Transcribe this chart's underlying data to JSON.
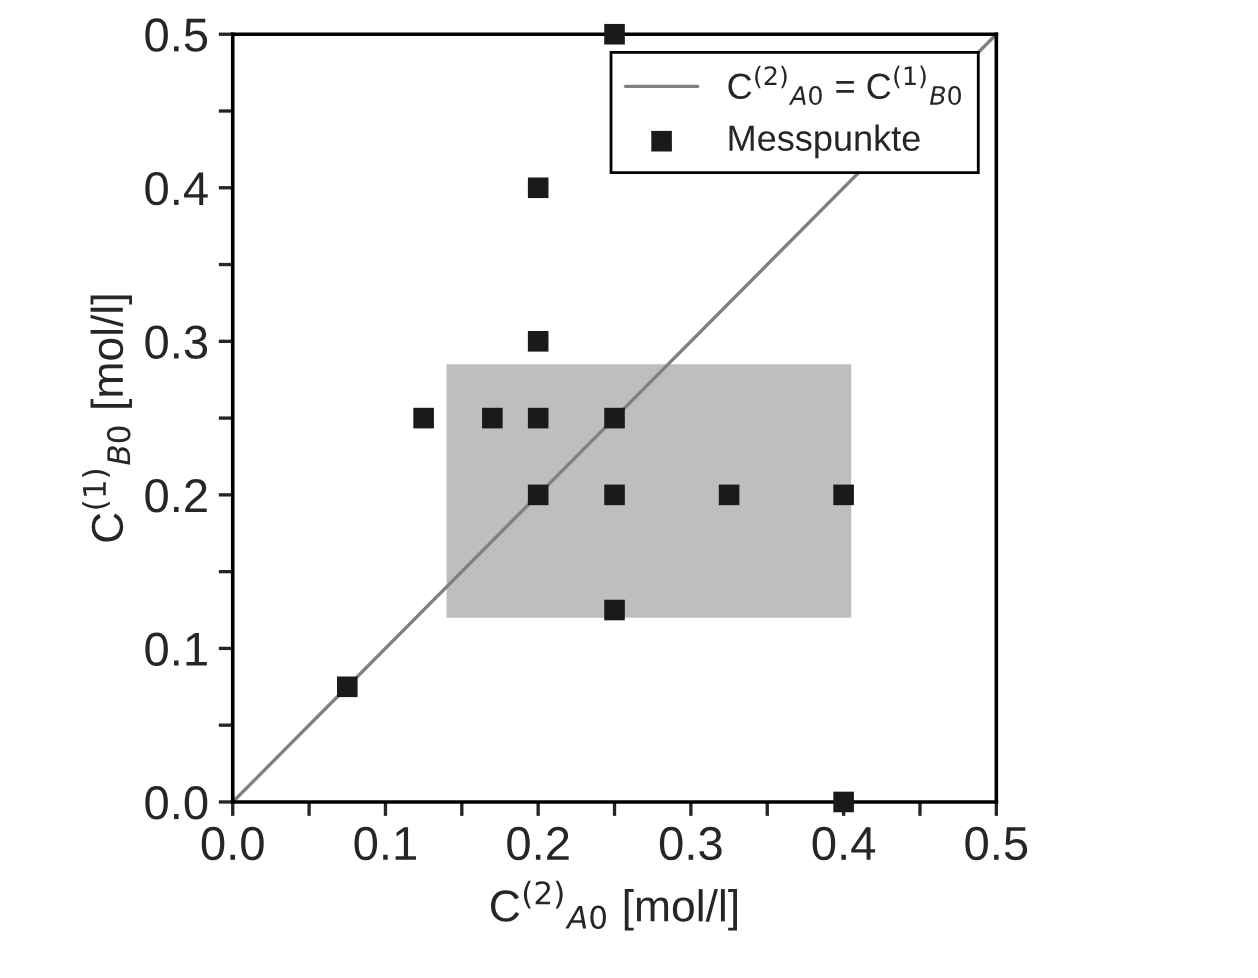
{
  "chart_data": {
    "type": "scatter",
    "xlabel": "C$^{(2)}$$_{A0}$ [mol/l]",
    "ylabel": "C$^{(1)}$$_{B0}$ [mol/l]",
    "xlim": [
      0,
      0.5
    ],
    "ylim": [
      0,
      0.5
    ],
    "xticks": [
      {
        "value": 0,
        "label": "0.0"
      },
      {
        "value": 0.05,
        "label": null
      },
      0.1,
      {
        "value": 0.15,
        "label": null
      },
      0.2,
      {
        "value": 0.25,
        "label": null
      },
      0.3,
      {
        "value": 0.35,
        "label": null
      },
      0.4,
      {
        "value": 0.45,
        "label": null
      },
      0.5
    ],
    "yticks": [
      {
        "value": 0,
        "label": "0.0"
      },
      {
        "value": 0.05,
        "label": null
      },
      0.1,
      {
        "value": 0.15,
        "label": null
      },
      0.2,
      {
        "value": 0.25,
        "label": null
      },
      0.3,
      {
        "value": 0.35,
        "label": null
      },
      0.4,
      {
        "value": 0.45,
        "label": null
      },
      0.5
    ],
    "grid": false,
    "legend": "top right",
    "series": [
      {
        "type": "area",
        "color": "#bdbec0",
        "x": [
          0.14,
          0.405
        ],
        "values": [
          null,
          null
        ],
        "lower": [
          0.12,
          0.12
        ],
        "upper": [
          0.285,
          0.285
        ]
      },
      {
        "type": "line",
        "name": "C$^{(2)}$$_{A0}$ = C$^{(1)}$$_{B0}$",
        "color": "#808080",
        "marker": "none",
        "line_style": "solid",
        "x": [
          0,
          0.5
        ],
        "values": [
          0,
          0.5
        ]
      },
      {
        "name": "Messpunkte",
        "color": "#1a1a1a",
        "marker": "square",
        "x": [
          0.075,
          0.125,
          0.17,
          0.2,
          0.2,
          0.2,
          0.2,
          0.25,
          0.25,
          0.25,
          0.25,
          0.325,
          0.4,
          0.4
        ],
        "values": [
          0.075,
          0.25,
          0.25,
          0.25,
          0.2,
          0.3,
          0.4,
          0.5,
          0.25,
          0.2,
          0.125,
          0.2,
          0.2,
          0.0
        ]
      }
    ]
  }
}
